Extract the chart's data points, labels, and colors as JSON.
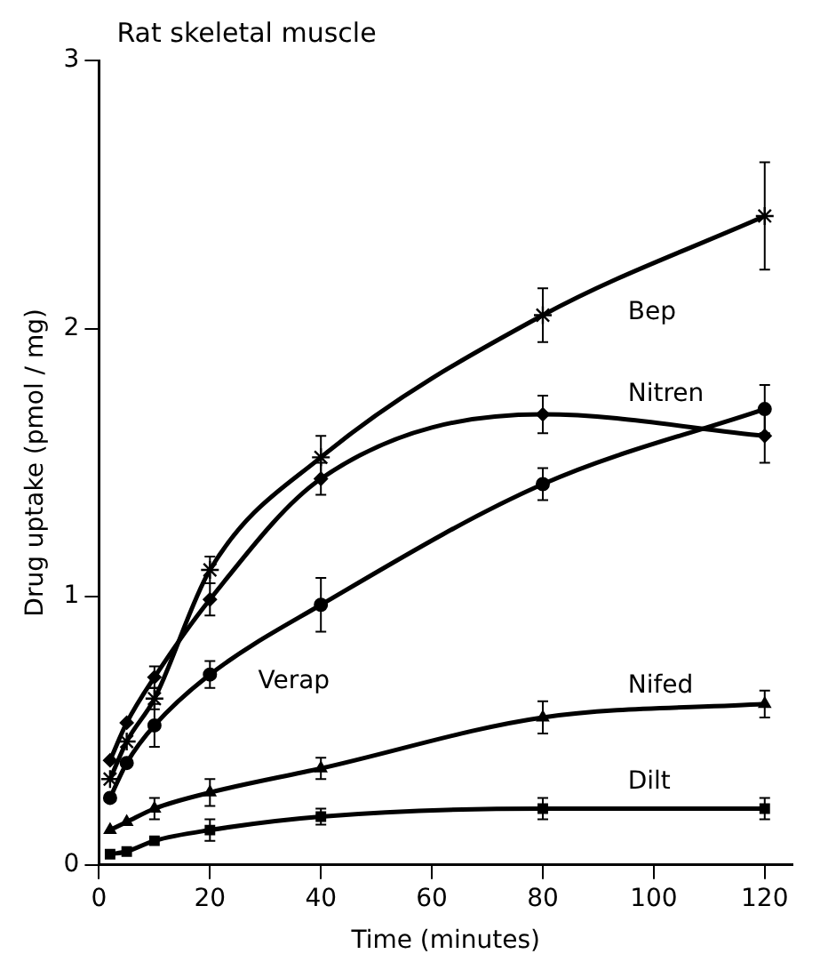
{
  "chart_data": {
    "type": "line",
    "title": "Rat skeletal muscle",
    "xlabel": "Time (minutes)",
    "ylabel": "Drug uptake (pmol / mg)",
    "xlim": [
      0,
      125
    ],
    "xticks": [
      0,
      20,
      40,
      60,
      80,
      100,
      120
    ],
    "ylim": [
      0,
      3
    ],
    "yticks": [
      0,
      1,
      2,
      3
    ],
    "grid": false,
    "legend": false,
    "x": [
      2,
      5,
      10,
      20,
      40,
      80,
      120
    ],
    "series": [
      {
        "name": "Bep",
        "color": "#000000",
        "marker": "cross",
        "values": [
          0.32,
          0.46,
          0.62,
          1.1,
          1.52,
          2.05,
          2.42
        ],
        "errors": [
          null,
          null,
          0.04,
          0.05,
          0.08,
          0.1,
          0.2
        ]
      },
      {
        "name": "Nitren",
        "color": "#000000",
        "marker": "diamond",
        "values": [
          0.39,
          0.53,
          0.7,
          0.99,
          1.44,
          1.68,
          1.6
        ],
        "errors": [
          null,
          null,
          0.04,
          0.06,
          0.06,
          0.07,
          0.1
        ]
      },
      {
        "name": "Verap",
        "color": "#000000",
        "marker": "circle",
        "values": [
          0.25,
          0.38,
          0.52,
          0.71,
          0.97,
          1.42,
          1.7
        ],
        "errors": [
          null,
          null,
          0.08,
          0.05,
          0.1,
          0.06,
          0.09
        ]
      },
      {
        "name": "Nifed",
        "color": "#000000",
        "marker": "triangle",
        "values": [
          0.13,
          0.16,
          0.21,
          0.27,
          0.36,
          0.55,
          0.6
        ],
        "errors": [
          null,
          null,
          0.04,
          0.05,
          0.04,
          0.06,
          0.05
        ]
      },
      {
        "name": "Dilt",
        "color": "#000000",
        "marker": "square",
        "values": [
          0.04,
          0.05,
          0.09,
          0.13,
          0.18,
          0.21,
          0.21
        ],
        "errors": [
          null,
          null,
          null,
          0.04,
          0.03,
          0.04,
          0.04
        ]
      }
    ]
  }
}
